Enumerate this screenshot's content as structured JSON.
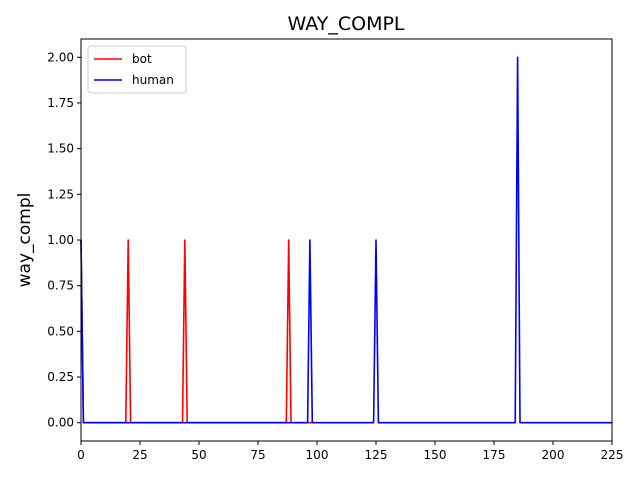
{
  "chart_data": {
    "type": "line",
    "title": "WAY_COMPL",
    "xlabel": "",
    "ylabel": "way_compl",
    "xlim": [
      0,
      225
    ],
    "ylim": [
      -0.1,
      2.1
    ],
    "xticks": [
      0,
      25,
      50,
      75,
      100,
      125,
      150,
      175,
      200,
      225
    ],
    "xtick_labels": [
      "0",
      "25",
      "50",
      "75",
      "100",
      "125",
      "150",
      "175",
      "200",
      "225"
    ],
    "yticks": [
      0.0,
      0.25,
      0.5,
      0.75,
      1.0,
      1.25,
      1.5,
      1.75,
      2.0
    ],
    "ytick_labels": [
      "0.00",
      "0.25",
      "0.50",
      "0.75",
      "1.00",
      "1.25",
      "1.50",
      "1.75",
      "2.00"
    ],
    "grid": false,
    "legend_position": "top-left",
    "series": [
      {
        "name": "bot",
        "color": "#ff0000",
        "x": [
          0,
          1,
          19,
          20,
          21,
          43,
          44,
          45,
          87,
          88,
          89,
          99
        ],
        "y": [
          1,
          0,
          0,
          1,
          0,
          0,
          1,
          0,
          0,
          1,
          0,
          0
        ]
      },
      {
        "name": "human",
        "color": "#0000ff",
        "x": [
          0,
          1,
          96,
          97,
          98,
          124,
          125,
          126,
          184,
          185,
          186,
          225
        ],
        "y": [
          1,
          0,
          0,
          1,
          0,
          0,
          1,
          0,
          0,
          2,
          0,
          0
        ]
      }
    ]
  }
}
